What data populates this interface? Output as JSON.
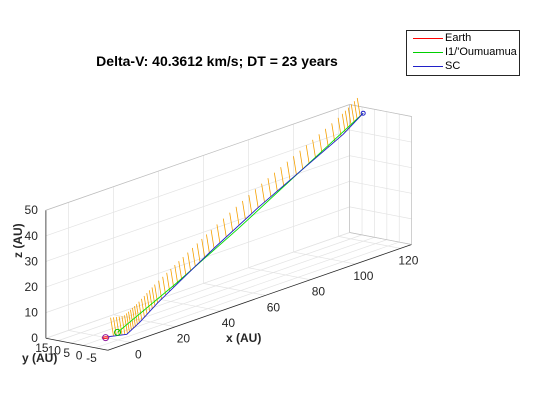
{
  "chart_data": {
    "type": "line",
    "title": "Delta-V: 40.3612 km/s; DT = 23 years",
    "xlabel": "x (AU)",
    "ylabel": "y (AU)",
    "zlabel": "z (AU)",
    "xlim": [
      -10,
      125
    ],
    "ylim": [
      -10,
      15
    ],
    "zlim": [
      0,
      50
    ],
    "x_ticks": [
      "0",
      "20",
      "40",
      "60",
      "80",
      "100",
      "120"
    ],
    "y_ticks": [
      "-5",
      "0",
      "5",
      "10",
      "15"
    ],
    "z_ticks": [
      "0",
      "10",
      "20",
      "30",
      "40",
      "50"
    ],
    "grid": true,
    "legend_position": "top-right outside",
    "series": [
      {
        "name": "Earth",
        "color": "#ff0000",
        "points": [
          [
            1,
            0,
            0
          ],
          [
            0.7,
            0.7,
            0
          ],
          [
            0,
            1,
            0
          ],
          [
            -0.7,
            0.7,
            0
          ],
          [
            -1,
            0,
            0
          ],
          [
            -0.7,
            -0.7,
            0
          ],
          [
            0,
            -1,
            0
          ],
          [
            0.7,
            -0.7,
            0
          ],
          [
            1,
            0,
            0
          ]
        ]
      },
      {
        "name": "I1/'Oumuamua",
        "color": "#00e000",
        "points": [
          [
            2,
            -3,
            2
          ],
          [
            30,
            -1,
            12
          ],
          [
            60,
            1,
            24
          ],
          [
            90,
            3,
            37
          ],
          [
            120,
            5,
            50
          ]
        ]
      },
      {
        "name": "SC",
        "color": "#2020c8",
        "points": [
          [
            1,
            0,
            0
          ],
          [
            5,
            -4,
            0.5
          ],
          [
            12,
            -3,
            3
          ],
          [
            22,
            -1,
            7
          ],
          [
            35,
            0,
            13
          ],
          [
            50,
            1,
            20
          ],
          [
            70,
            2,
            29
          ],
          [
            90,
            3,
            37
          ],
          [
            110,
            4,
            45
          ],
          [
            120,
            5,
            50
          ]
        ]
      },
      {
        "name": "thrust",
        "color": "#f5a000",
        "points": []
      }
    ]
  },
  "legend": {
    "entries": [
      {
        "label": "Earth",
        "color": "#ff0000"
      },
      {
        "label": "I1/'Oumuamua",
        "color": "#00d000"
      },
      {
        "label": "SC",
        "color": "#2020c8"
      }
    ]
  }
}
